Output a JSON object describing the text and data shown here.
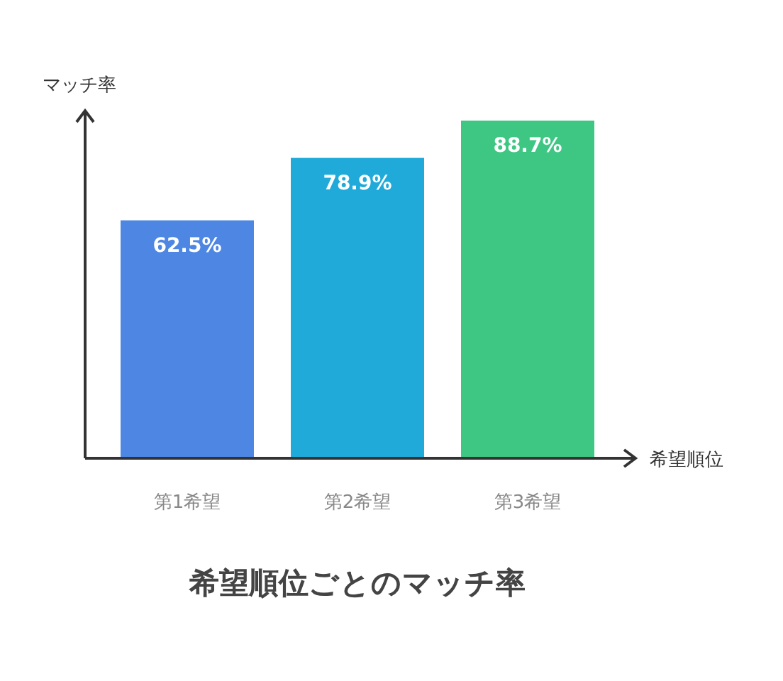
{
  "chart_data": {
    "type": "bar",
    "title": "希望順位ごとのマッチ率",
    "xlabel": "希望順位",
    "ylabel": "マッチ率",
    "categories": [
      "第1希望",
      "第2希望",
      "第3希望"
    ],
    "values": [
      62.5,
      78.9,
      88.7
    ],
    "colors": [
      "#4e86e4",
      "#1faad9",
      "#3ec683"
    ],
    "value_labels": [
      "62.5%",
      "78.9%",
      "88.7%"
    ]
  }
}
